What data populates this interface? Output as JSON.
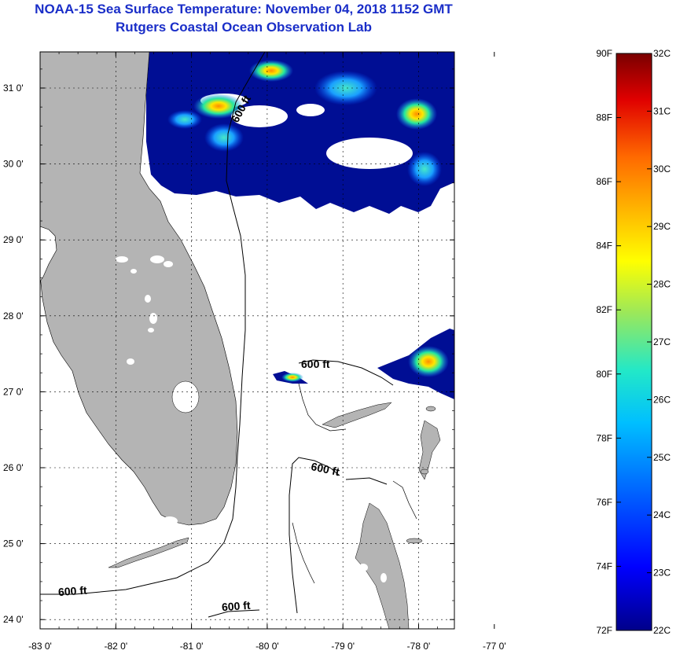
{
  "header": {
    "title": "NOAA-15 Sea Surface Temperature:  November 04, 2018 1152 GMT",
    "subtitle": "Rutgers Coastal Ocean Observation Lab"
  },
  "map": {
    "lon_labels": [
      "-83 0'",
      "-82 0'",
      "-81 0'",
      "-80 0'",
      "-79 0'",
      "-78 0'",
      "-77 0'"
    ],
    "lat_labels": [
      "31 0'",
      "30 0'",
      "29 0'",
      "28 0'",
      "27 0'",
      "26 0'",
      "25 0'",
      "24 0'"
    ],
    "lon_values": [
      -83,
      -82,
      -81,
      -80,
      -79,
      -78,
      -77
    ],
    "lat_values": [
      31,
      30,
      29,
      28,
      27,
      26,
      25,
      24
    ],
    "contour_labels": [
      "600 ft",
      "600 ft",
      "600 ft",
      "600 ft",
      "600 ft"
    ],
    "colors": {
      "land": "#b4b4b4",
      "cloud": "#ffffff",
      "ocean_cold": "#000e94"
    }
  },
  "colorbar": {
    "fahrenheit": [
      "90F",
      "88F",
      "86F",
      "84F",
      "82F",
      "80F",
      "78F",
      "76F",
      "74F",
      "72F"
    ],
    "celsius": [
      "32C",
      "31C",
      "30C",
      "29C",
      "28C",
      "27C",
      "26C",
      "25C",
      "24C",
      "23C",
      "22C"
    ],
    "f_range": [
      72,
      90
    ],
    "c_range": [
      22,
      32
    ]
  }
}
